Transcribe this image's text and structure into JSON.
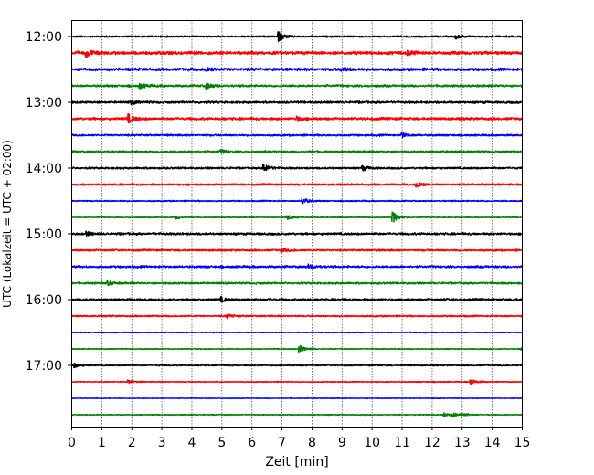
{
  "chart_data": {
    "type": "line",
    "subtype": "helicorder",
    "xlabel": "Zeit  [min]",
    "ylabel": "UTC (Lokalzeit = UTC + 02:00)",
    "xlim": [
      0,
      15
    ],
    "xticks": [
      "0",
      "1",
      "2",
      "3",
      "4",
      "5",
      "6",
      "7",
      "8",
      "9",
      "10",
      "11",
      "12",
      "13",
      "14",
      "15"
    ],
    "yticks": [
      "12:00",
      "13:00",
      "14:00",
      "15:00",
      "16:00",
      "17:00"
    ],
    "grid": "vertical dotted at each minute",
    "colors": [
      "#000000",
      "#ff0000",
      "#0000ff",
      "#008000"
    ],
    "traces": [
      {
        "start": "12:00",
        "noise": 0.5,
        "events": [
          [
            6.9,
            3.5
          ],
          [
            12.8,
            1.5
          ]
        ]
      },
      {
        "start": "12:15",
        "noise": 1.0,
        "events": [
          [
            0.5,
            2.5
          ],
          [
            11.2,
            1.5
          ]
        ]
      },
      {
        "start": "12:30",
        "noise": 0.9,
        "events": [
          [
            4.5,
            1.5
          ],
          [
            9,
            1.3
          ]
        ]
      },
      {
        "start": "12:45",
        "noise": 0.7,
        "events": [
          [
            2.3,
            1.6
          ],
          [
            4.5,
            2.0
          ]
        ]
      },
      {
        "start": "13:00",
        "noise": 0.7,
        "events": [
          [
            2.0,
            1.4
          ]
        ]
      },
      {
        "start": "13:15",
        "noise": 0.8,
        "events": [
          [
            1.9,
            3.0
          ],
          [
            7.5,
            1.6
          ]
        ]
      },
      {
        "start": "13:30",
        "noise": 0.6,
        "events": [
          [
            11.0,
            1.5
          ]
        ]
      },
      {
        "start": "13:45",
        "noise": 0.6,
        "events": [
          [
            5.0,
            1.3
          ]
        ]
      },
      {
        "start": "14:00",
        "noise": 0.6,
        "events": [
          [
            6.4,
            3.0
          ],
          [
            9.7,
            1.8
          ]
        ]
      },
      {
        "start": "14:15",
        "noise": 0.6,
        "events": [
          [
            11.5,
            2.5
          ]
        ]
      },
      {
        "start": "14:30",
        "noise": 0.4,
        "events": [
          [
            7.7,
            2.2
          ]
        ]
      },
      {
        "start": "14:45",
        "noise": 0.3,
        "events": [
          [
            10.7,
            4.0
          ],
          [
            7.2,
            1.5
          ],
          [
            3.5,
            1.2
          ]
        ]
      },
      {
        "start": "15:00",
        "noise": 0.7,
        "events": [
          [
            0.5,
            1.3
          ]
        ]
      },
      {
        "start": "15:15",
        "noise": 0.6,
        "events": [
          [
            7.0,
            1.2
          ]
        ]
      },
      {
        "start": "15:30",
        "noise": 0.7,
        "events": [
          [
            7.9,
            1.5
          ]
        ]
      },
      {
        "start": "15:45",
        "noise": 0.6,
        "events": [
          [
            1.2,
            1.6
          ]
        ]
      },
      {
        "start": "16:00",
        "noise": 0.7,
        "events": [
          [
            5.0,
            1.5
          ]
        ]
      },
      {
        "start": "16:15",
        "noise": 0.5,
        "events": [
          [
            5.2,
            1.4
          ]
        ]
      },
      {
        "start": "16:30",
        "noise": 0.3,
        "events": []
      },
      {
        "start": "16:45",
        "noise": 0.3,
        "events": [
          [
            7.6,
            2.5
          ],
          [
            15,
            1.5
          ]
        ]
      },
      {
        "start": "17:00",
        "noise": 0.4,
        "events": [
          [
            0.1,
            1.5
          ]
        ]
      },
      {
        "start": "17:15",
        "noise": 0.3,
        "events": [
          [
            13.3,
            2.0
          ],
          [
            1.9,
            1.2
          ]
        ]
      },
      {
        "start": "17:30",
        "noise": 0.2,
        "events": []
      },
      {
        "start": "17:45",
        "noise": 0.3,
        "events": [
          [
            12.4,
            1.4
          ],
          [
            12.7,
            1.4
          ],
          [
            13.0,
            1.4
          ]
        ]
      }
    ]
  }
}
